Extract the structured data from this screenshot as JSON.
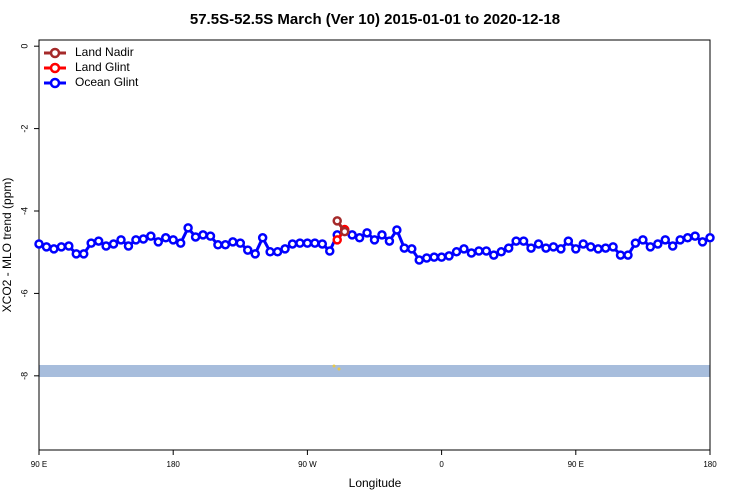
{
  "chart_data": {
    "type": "line",
    "title": "57.5S-52.5S March (Ver 10)   2015-01-01 to 2020-12-18",
    "x_label": "Longitude",
    "y_label": "XCO2 - MLO trend (ppm)",
    "xlim": [
      90,
      540
    ],
    "xticks": [
      {
        "value": 90,
        "label": "90 E"
      },
      {
        "value": 180,
        "label": "180"
      },
      {
        "value": 270,
        "label": "90 W"
      },
      {
        "value": 360,
        "label": "0"
      },
      {
        "value": 450,
        "label": "90 E"
      },
      {
        "value": 540,
        "label": "180"
      }
    ],
    "ylim": [
      -9.8,
      0.15
    ],
    "yticks": [
      0,
      -2,
      -4,
      -6,
      -8
    ],
    "legend": "top-left",
    "series": [
      {
        "name": "Land Nadir",
        "color": "#a52a2a",
        "x": [
          290,
          295
        ],
        "values": [
          -4.24,
          -4.5
        ]
      },
      {
        "name": "Land Glint",
        "color": "#ff0000",
        "x": [
          290,
          295
        ],
        "values": [
          -4.7,
          -4.45
        ]
      },
      {
        "name": "Ocean Glint",
        "color": "#0000ff",
        "x": [
          90,
          95,
          100,
          105,
          110,
          115,
          120,
          125,
          130,
          135,
          140,
          145,
          150,
          155,
          160,
          165,
          170,
          175,
          180,
          185,
          190,
          195,
          200,
          205,
          210,
          215,
          220,
          225,
          230,
          235,
          240,
          245,
          250,
          255,
          260,
          265,
          270,
          275,
          280,
          285,
          290,
          295,
          300,
          305,
          310,
          315,
          320,
          325,
          330,
          335,
          340,
          345,
          350,
          355,
          360,
          365,
          370,
          375,
          380,
          385,
          390,
          395,
          400,
          405,
          410,
          415,
          420,
          425,
          430,
          435,
          440,
          445,
          450,
          455,
          460,
          465,
          470,
          475,
          480,
          485,
          490,
          495,
          500,
          505,
          510,
          515,
          520,
          525,
          530,
          535,
          540
        ],
        "values": [
          -4.8,
          -4.87,
          -4.92,
          -4.87,
          -4.85,
          -5.04,
          -5.04,
          -4.78,
          -4.73,
          -4.85,
          -4.8,
          -4.7,
          -4.85,
          -4.7,
          -4.68,
          -4.61,
          -4.75,
          -4.65,
          -4.7,
          -4.78,
          -4.41,
          -4.63,
          -4.58,
          -4.61,
          -4.82,
          -4.82,
          -4.75,
          -4.78,
          -4.95,
          -5.04,
          -4.65,
          -4.99,
          -4.99,
          -4.92,
          -4.8,
          -4.78,
          -4.78,
          -4.78,
          -4.8,
          -4.97,
          -4.58,
          -4.48,
          -4.58,
          -4.65,
          -4.53,
          -4.7,
          -4.58,
          -4.73,
          -4.46,
          -4.9,
          -4.92,
          -5.19,
          -5.14,
          -5.12,
          -5.12,
          -5.09,
          -4.99,
          -4.92,
          -5.02,
          -4.97,
          -4.97,
          -5.07,
          -4.99,
          -4.9,
          -4.73,
          -4.73,
          -4.9,
          -4.8,
          -4.9,
          -4.87,
          -4.92,
          -4.73,
          -4.92,
          -4.8,
          -4.87,
          -4.92,
          -4.9,
          -4.87,
          -5.07,
          -5.07,
          -4.78,
          -4.7,
          -4.87,
          -4.8,
          -4.7,
          -4.85,
          -4.7,
          -4.65,
          -4.61,
          -4.75,
          -4.65
        ]
      }
    ]
  }
}
